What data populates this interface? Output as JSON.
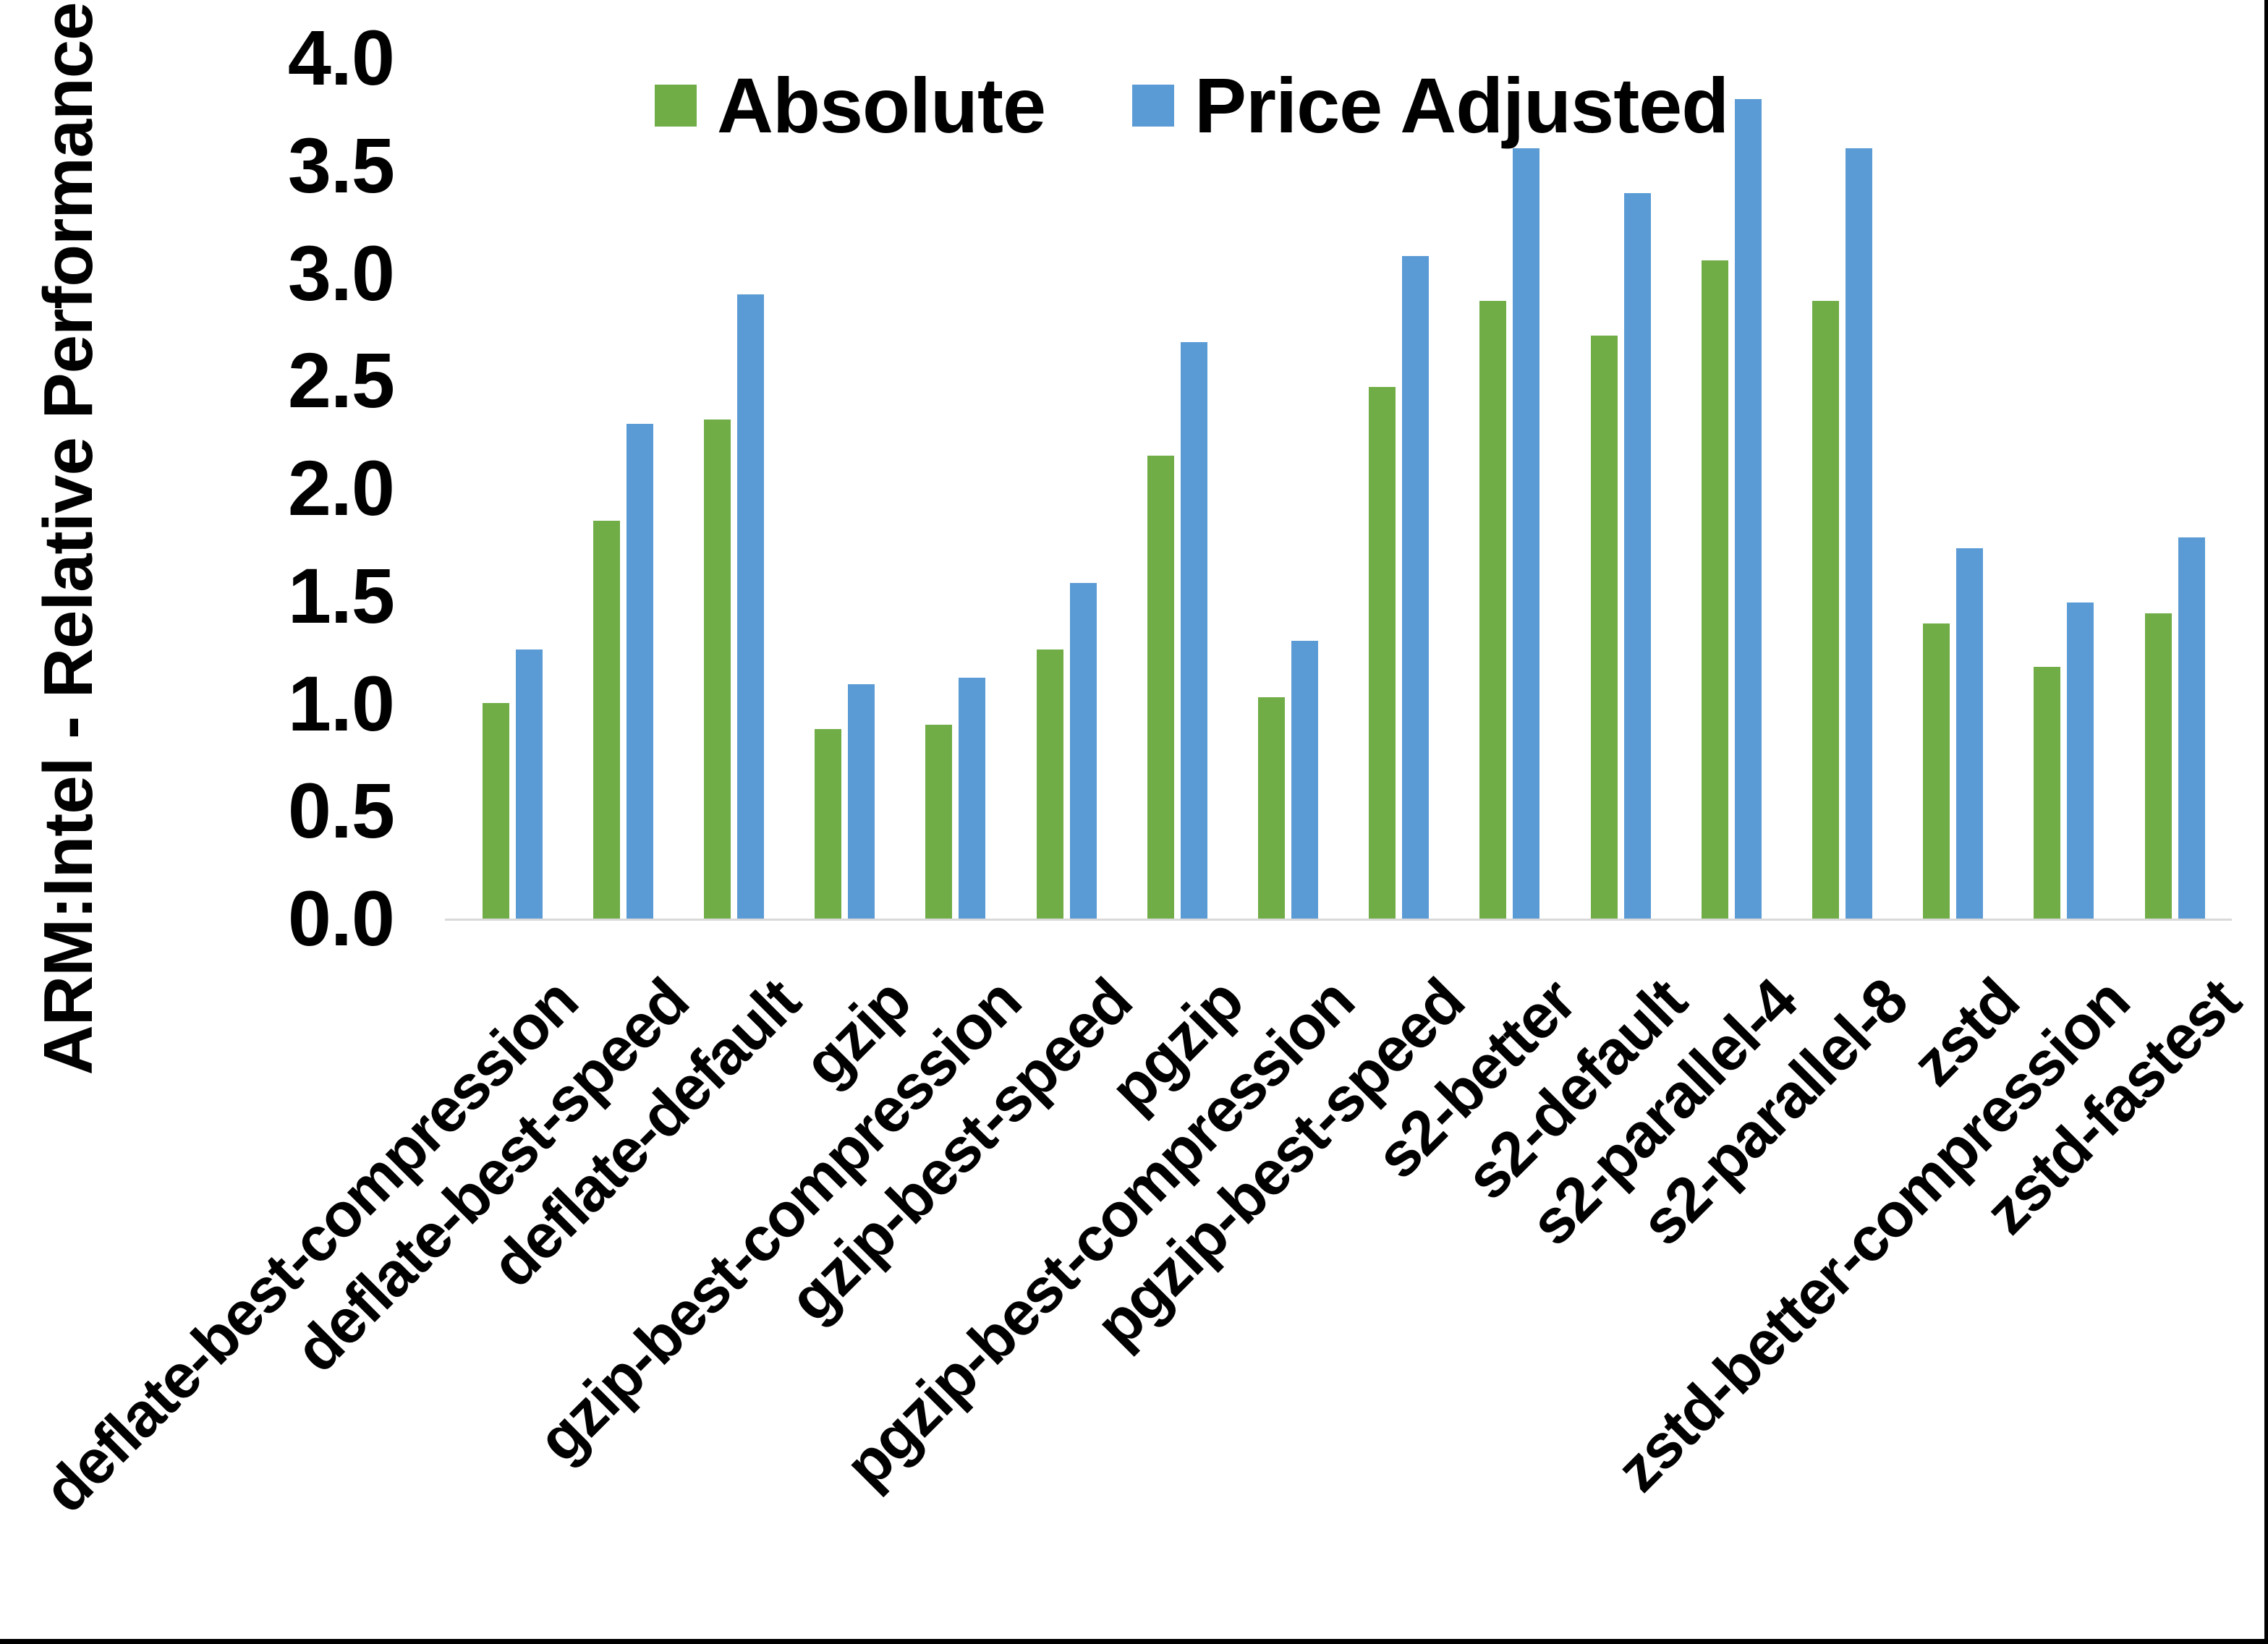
{
  "chart_data": {
    "type": "bar",
    "title": "",
    "xlabel": "",
    "ylabel": "ARM:Intel - Relative Performance",
    "ylim": [
      0.0,
      4.0
    ],
    "y_tick_step": 0.5,
    "y_ticks": [
      "0.0",
      "0.5",
      "1.0",
      "1.5",
      "2.0",
      "2.5",
      "3.0",
      "3.5",
      "4.0"
    ],
    "grid": false,
    "legend_position": "top-center",
    "categories": [
      "deflate-best-compression",
      "deflate-best-speed",
      "deflate-default",
      "gzip",
      "gzip-best-compression",
      "gzip-best-speed",
      "pgzip",
      "pgzip-best-compression",
      "pgzip-best-speed",
      "s2-better",
      "s2-default",
      "s2-parallel-4",
      "s2-parallel-8",
      "zstd",
      "zstd-better-compression",
      "zstd-fastest"
    ],
    "series": [
      {
        "name": "Absolute",
        "color": "#70AD47",
        "values": [
          1.0,
          1.85,
          2.32,
          0.88,
          0.9,
          1.25,
          2.15,
          1.03,
          2.47,
          2.87,
          2.71,
          3.06,
          2.87,
          1.37,
          1.17,
          1.42
        ]
      },
      {
        "name": "Price Adjusted",
        "color": "#5B9BD5",
        "values": [
          1.25,
          2.3,
          2.9,
          1.09,
          1.12,
          1.56,
          2.68,
          1.29,
          3.08,
          3.58,
          3.37,
          3.81,
          3.58,
          1.72,
          1.47,
          1.77
        ]
      }
    ],
    "axis_line_color": "#D9D9D9",
    "background_color": "#FFFFFF"
  }
}
